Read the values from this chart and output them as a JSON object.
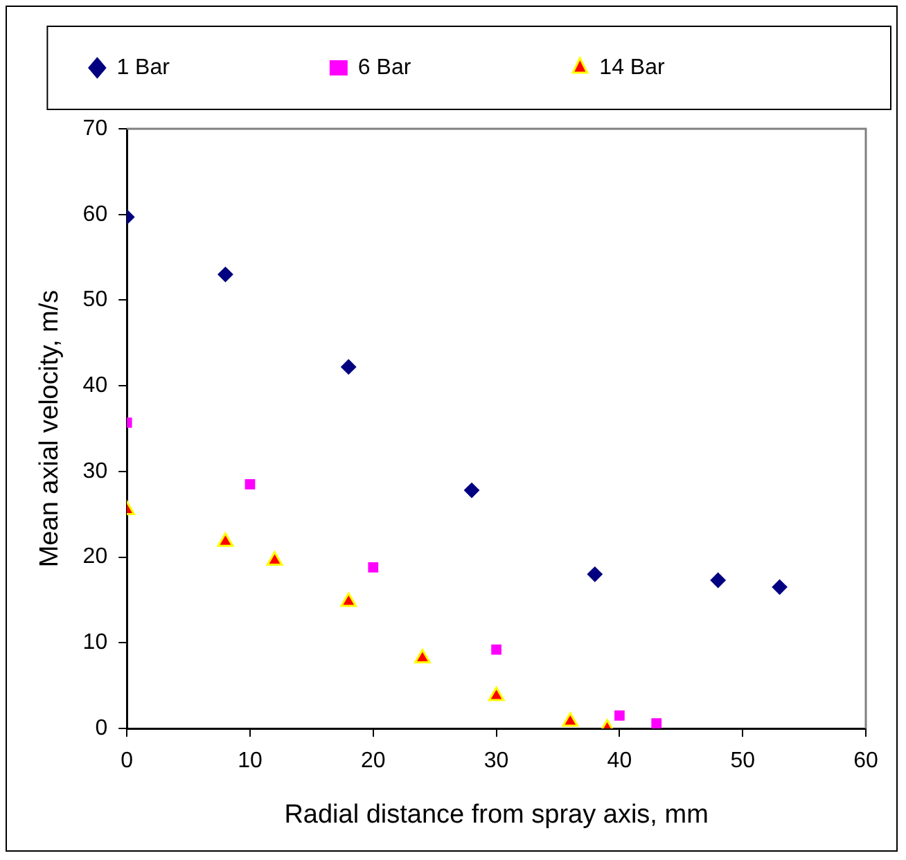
{
  "chart_data": {
    "type": "scatter",
    "xlabel": "Radial distance from spray axis, mm",
    "ylabel": "Mean axial velocity, m/s",
    "xlim": [
      0,
      60
    ],
    "xticks": [
      0,
      10,
      20,
      30,
      40,
      50,
      60
    ],
    "ylim": [
      0,
      70
    ],
    "yticks": [
      0,
      10,
      20,
      30,
      40,
      50,
      60,
      70
    ],
    "grid": false,
    "legend": "top",
    "series": [
      {
        "name": "1 Bar",
        "color": "#000080",
        "marker": "diamond",
        "x": [
          0,
          8,
          18,
          28,
          38,
          48,
          53
        ],
        "values": [
          59.7,
          53,
          42.2,
          27.8,
          18,
          17.3,
          16.5
        ]
      },
      {
        "name": "6 Bar",
        "color": "#ff00ff",
        "marker": "square",
        "x": [
          0,
          10,
          20,
          30,
          40,
          43
        ],
        "values": [
          35.7,
          28.5,
          18.8,
          9.2,
          1.5,
          0.6
        ]
      },
      {
        "name": "14 Bar",
        "color": "#ff0000",
        "marker": "triangle",
        "x": [
          0,
          8,
          12,
          18,
          24,
          30,
          36,
          39
        ],
        "values": [
          25.5,
          21.8,
          19.6,
          14.8,
          8.2,
          3.8,
          0.8,
          0
        ]
      }
    ]
  }
}
